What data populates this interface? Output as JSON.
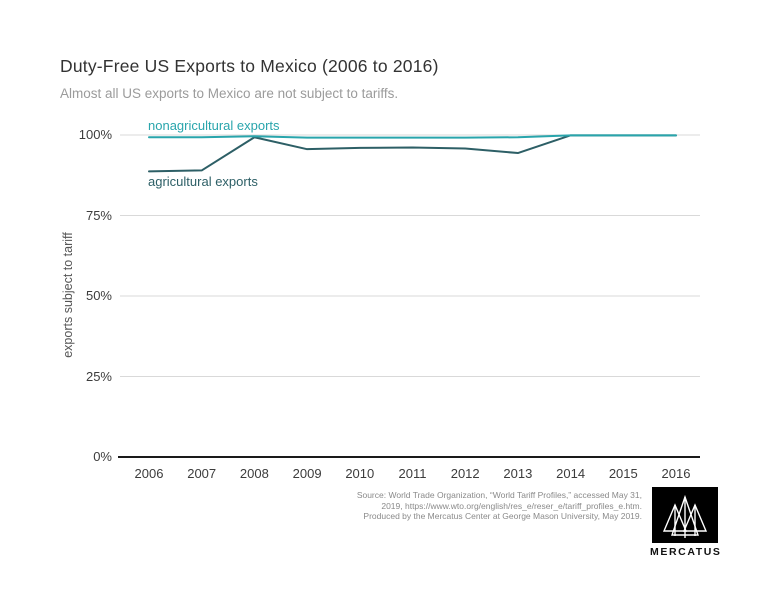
{
  "chart_data": {
    "type": "line",
    "title": "Duty-Free US Exports to Mexico (2006 to 2016)",
    "subtitle": "Almost all US exports to Mexico are not subject to tariffs.",
    "ylabel": "exports subject to tariff",
    "categories": [
      "2006",
      "2007",
      "2008",
      "2009",
      "2010",
      "2011",
      "2012",
      "2013",
      "2014",
      "2015",
      "2016"
    ],
    "ylim": [
      0,
      100
    ],
    "yticks": [
      0,
      25,
      50,
      75,
      100
    ],
    "ytick_labels": [
      "0%",
      "25%",
      "50%",
      "75%",
      "100%"
    ],
    "grid": "horizontal",
    "legend_position": "inline-labels",
    "series": [
      {
        "name": "nonagricultural exports",
        "color": "#29a5ac",
        "values": [
          99.3,
          99.3,
          99.6,
          99.2,
          99.2,
          99.2,
          99.2,
          99.3,
          99.9,
          99.9,
          99.9
        ]
      },
      {
        "name": "agricultural exports",
        "color": "#2d5f66",
        "values": [
          88.7,
          89.0,
          99.3,
          95.6,
          96.0,
          96.1,
          95.8,
          94.4,
          99.9,
          99.9,
          99.9
        ]
      }
    ]
  },
  "colors": {
    "gridline": "#d9d9d9",
    "axis": "#1a1a1a",
    "tick_text": "#3c3c3c"
  },
  "source": {
    "line1": "Source: World Trade Organization, “World Tariff Profiles,” accessed May 31,",
    "line2": "2019, https://www.wto.org/english/res_e/reser_e/tariff_profiles_e.htm.",
    "line3": "Produced by the Mercatus Center at George Mason University, May 2019."
  },
  "logo": {
    "text": "MERCATUS"
  }
}
